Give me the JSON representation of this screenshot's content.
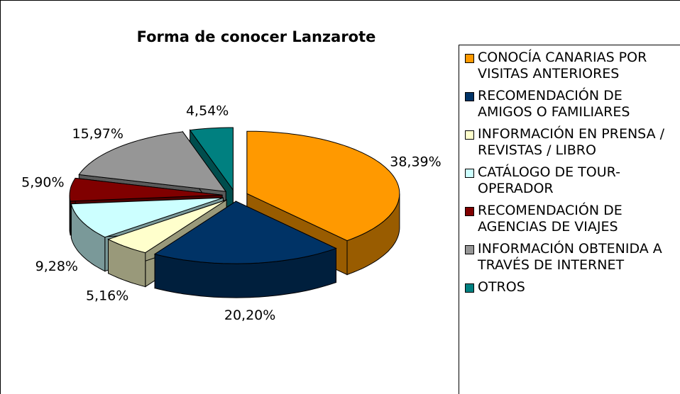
{
  "chart_data": {
    "type": "pie",
    "title": "Forma de conocer Lanzarote",
    "categories": [
      "CONOCÍA CANARIAS POR VISITAS ANTERIORES",
      "RECOMENDACIÓN DE AMIGOS O FAMILIARES",
      "INFORMACIÓN EN PRENSA / REVISTAS / LIBRO",
      "CATÁLOGO DE TOUR-OPERADOR",
      "RECOMENDACIÓN DE AGENCIAS DE VIAJES",
      "INFORMACIÓN OBTENIDA A TRAVÉS DE INTERNET",
      "OTROS"
    ],
    "values": [
      38.39,
      20.2,
      5.16,
      9.28,
      5.9,
      15.97,
      4.54
    ],
    "value_labels": [
      "38,39%",
      "20,20%",
      "5,16%",
      "9,28%",
      "5,90%",
      "15,97%",
      "4,54%"
    ],
    "colors": [
      "#FF9900",
      "#003366",
      "#FFFFCC",
      "#CCFFFF",
      "#800000",
      "#969696",
      "#008080"
    ],
    "legend": "right"
  }
}
